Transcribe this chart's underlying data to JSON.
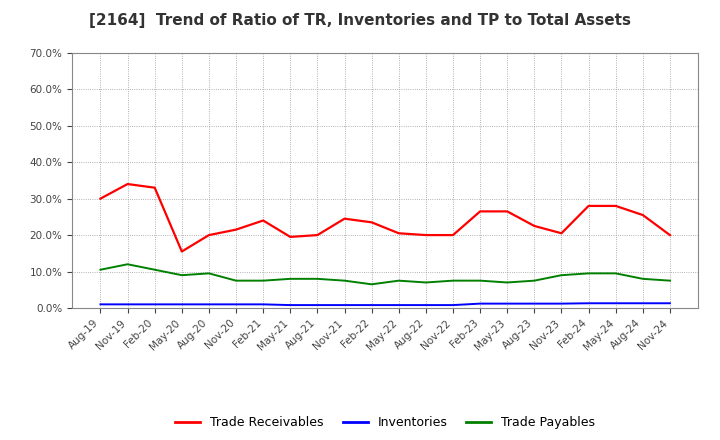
{
  "title": "[2164]  Trend of Ratio of TR, Inventories and TP to Total Assets",
  "labels": [
    "Aug-19",
    "Nov-19",
    "Feb-20",
    "May-20",
    "Aug-20",
    "Nov-20",
    "Feb-21",
    "May-21",
    "Aug-21",
    "Nov-21",
    "Feb-22",
    "May-22",
    "Aug-22",
    "Nov-22",
    "Feb-23",
    "May-23",
    "Aug-23",
    "Nov-23",
    "Feb-24",
    "May-24",
    "Aug-24",
    "Nov-24"
  ],
  "trade_receivables": [
    0.3,
    0.34,
    0.33,
    0.155,
    0.2,
    0.215,
    0.24,
    0.195,
    0.2,
    0.245,
    0.235,
    0.205,
    0.2,
    0.2,
    0.265,
    0.265,
    0.225,
    0.205,
    0.28,
    0.28,
    0.255,
    0.2
  ],
  "inventories": [
    0.01,
    0.01,
    0.01,
    0.01,
    0.01,
    0.01,
    0.01,
    0.008,
    0.008,
    0.008,
    0.008,
    0.008,
    0.008,
    0.008,
    0.012,
    0.012,
    0.012,
    0.012,
    0.013,
    0.013,
    0.013,
    0.013
  ],
  "trade_payables": [
    0.105,
    0.12,
    0.105,
    0.09,
    0.095,
    0.075,
    0.075,
    0.08,
    0.08,
    0.075,
    0.065,
    0.075,
    0.07,
    0.075,
    0.075,
    0.07,
    0.075,
    0.09,
    0.095,
    0.095,
    0.08,
    0.075
  ],
  "tr_color": "#ff0000",
  "inv_color": "#0000ff",
  "tp_color": "#008000",
  "background_color": "#ffffff",
  "ylim": [
    0.0,
    0.7
  ],
  "yticks": [
    0.0,
    0.1,
    0.2,
    0.3,
    0.4,
    0.5,
    0.6,
    0.7
  ],
  "legend_tr": "Trade Receivables",
  "legend_inv": "Inventories",
  "legend_tp": "Trade Payables",
  "title_fontsize": 11,
  "tick_fontsize": 7.5,
  "legend_fontsize": 9
}
